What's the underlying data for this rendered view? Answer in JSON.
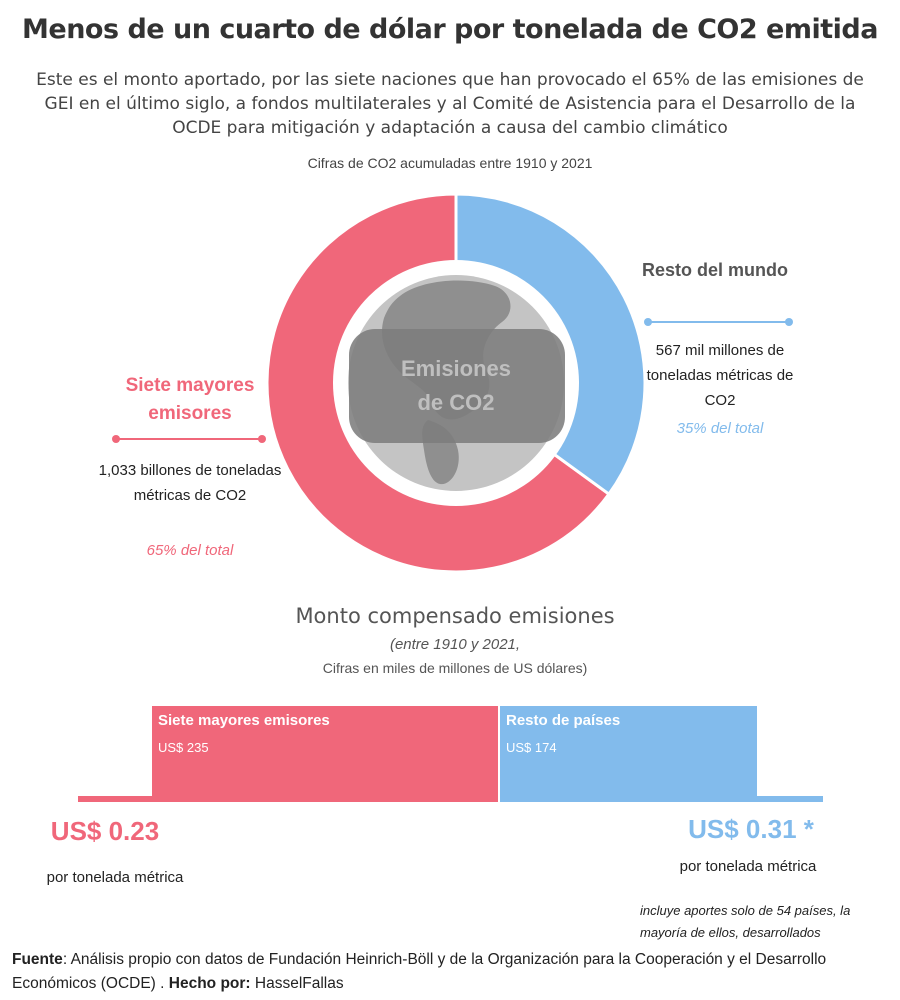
{
  "title": "Menos de un cuarto de dólar por tonelada de CO2 emitida",
  "subtitle": "Este es el monto aportado, por las siete naciones que han provocado el 65% de las emisiones de GEI en el último siglo, a fondos multilaterales y al Comité de Asistencia para el Desarrollo de la OCDE para mitigación y adaptación a causa del cambio climático",
  "donut_note": "Cifras de CO2 acumuladas entre 1910 y 2021",
  "center_label": "Emisiones de CO2",
  "seven": {
    "heading": "Siete mayores emisores",
    "value_text": "1,033 billones de toneladas métricas de CO2",
    "pct_text": "65% del total"
  },
  "rest": {
    "heading": "Resto del mundo",
    "value_text": "567 mil millones de toneladas métricas de CO2",
    "pct_text": "35% del total"
  },
  "section": {
    "title": "Monto compensado emisiones",
    "sub1": "(entre 1910 y 2021,",
    "sub2": "Cifras en miles de millones de US dólares)"
  },
  "bars": {
    "seven_name": "Siete mayores emisores",
    "seven_value": "US$ 235",
    "rest_name": "Resto de países",
    "rest_value": "US$ 174"
  },
  "per_ton": {
    "seven_value": "US$ 0.23",
    "seven_label": "por tonelada métrica",
    "rest_value": "US$ 0.31 *",
    "rest_label": "por tonelada métrica",
    "footnote": "incluye aportes solo de 54 países, la mayoría de ellos, desarrollados"
  },
  "source": {
    "label_fuente": "Fuente",
    "text": ": Análisis propio con datos de Fundación Heinrich-Böll y de la Organización para la Cooperación y el Desarrollo Económicos (OCDE)  . ",
    "label_hecho": "Hecho por:",
    "author": " HasselFallas"
  },
  "colors": {
    "seven": "#f0677a",
    "rest": "#82bbec",
    "globe": "#c4c4c4",
    "center_box": "#7d7d7d"
  },
  "chart_data": [
    {
      "type": "pie",
      "title": "",
      "categories": [
        "Siete mayores emisores",
        "Resto del mundo"
      ],
      "values": [
        65,
        35
      ],
      "units": "% del total"
    },
    {
      "type": "bar",
      "title": "Monto compensado emisiones",
      "orientation": "horizontal-stacked",
      "categories": [
        "Siete mayores emisores",
        "Resto de países"
      ],
      "values": [
        235,
        174
      ],
      "units": "miles de millones de US dólares"
    }
  ]
}
